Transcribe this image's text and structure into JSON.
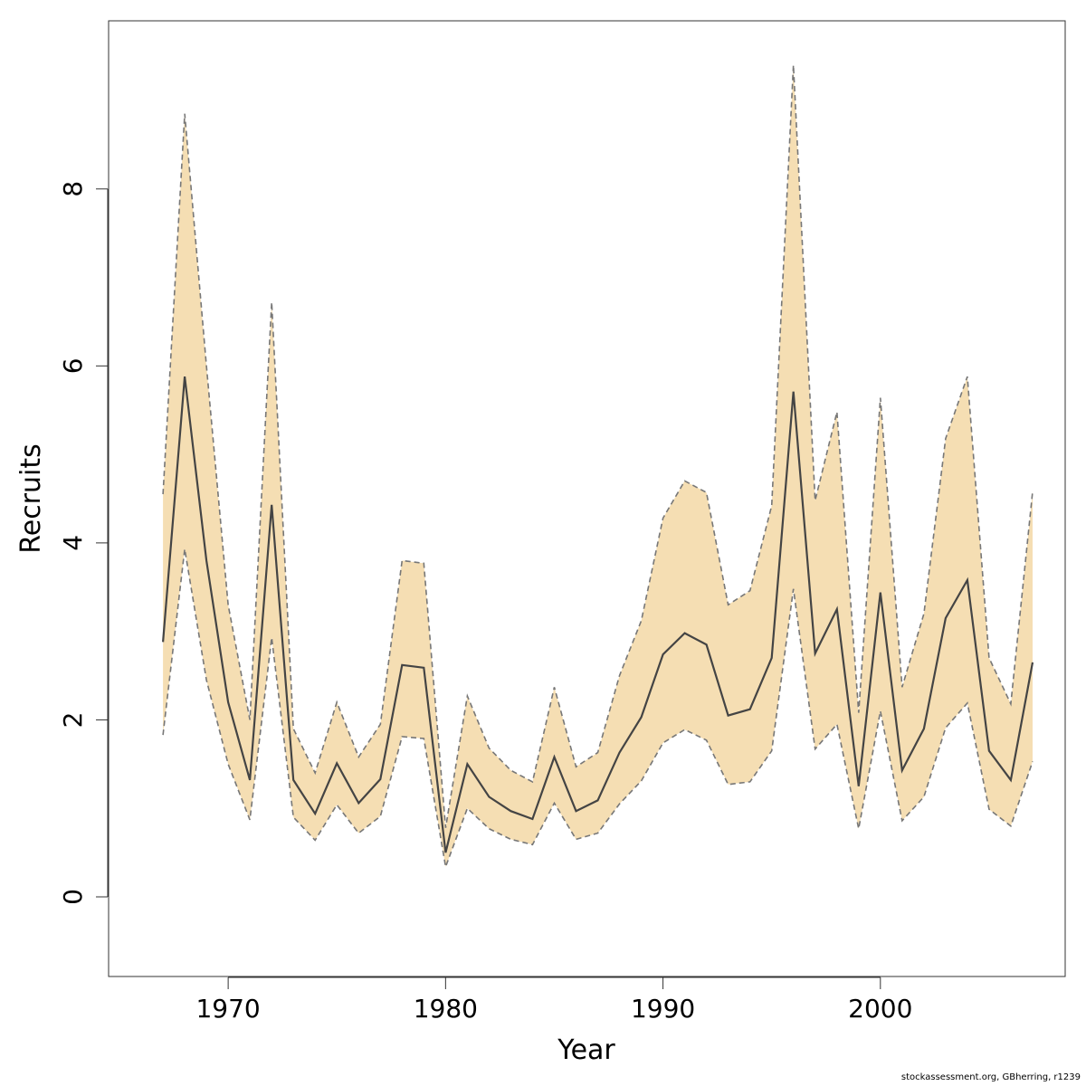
{
  "chart_data": {
    "type": "line",
    "xlabel": "Year",
    "ylabel": "Recruits",
    "xlim": [
      1964.5,
      2008.5
    ],
    "ylim": [
      -0.9,
      9.9
    ],
    "xticks": [
      1970,
      1980,
      1990,
      2000
    ],
    "yticks": [
      0,
      2,
      4,
      6,
      8
    ],
    "band_color": "#f5deb3",
    "line_color": "#444444",
    "bound_color": "#777777",
    "x": [
      1967,
      1968,
      1969,
      1970,
      1971,
      1972,
      1973,
      1974,
      1975,
      1976,
      1977,
      1978,
      1979,
      1980,
      1981,
      1982,
      1983,
      1984,
      1985,
      1986,
      1987,
      1988,
      1989,
      1990,
      1991,
      1992,
      1993,
      1994,
      1995,
      1996,
      1997,
      1998,
      1999,
      2000,
      2001,
      2002,
      2003,
      2004,
      2005,
      2006,
      2007
    ],
    "series": [
      {
        "role": "estimate",
        "values": [
          2.88,
          5.88,
          3.8,
          2.2,
          1.32,
          4.43,
          1.32,
          0.94,
          1.51,
          1.06,
          1.33,
          2.62,
          2.59,
          0.5,
          1.5,
          1.13,
          0.97,
          0.88,
          1.58,
          0.97,
          1.09,
          1.63,
          2.03,
          2.74,
          2.98,
          2.85,
          2.05,
          2.12,
          2.7,
          5.71,
          2.75,
          3.25,
          1.25,
          3.44,
          1.43,
          1.9,
          3.15,
          3.58,
          1.65,
          1.32,
          2.65
        ]
      },
      {
        "role": "upper",
        "values": [
          4.55,
          8.85,
          6.0,
          3.3,
          2.0,
          6.72,
          1.9,
          1.4,
          2.2,
          1.58,
          1.95,
          3.8,
          3.77,
          0.78,
          2.27,
          1.68,
          1.43,
          1.3,
          2.37,
          1.47,
          1.63,
          2.5,
          3.12,
          4.28,
          4.7,
          4.57,
          3.3,
          3.46,
          4.42,
          9.4,
          4.48,
          5.48,
          2.08,
          5.64,
          2.37,
          3.2,
          5.18,
          5.88,
          2.7,
          2.18,
          4.58
        ]
      },
      {
        "role": "lower",
        "values": [
          1.83,
          3.93,
          2.45,
          1.5,
          0.87,
          2.93,
          0.9,
          0.64,
          1.04,
          0.72,
          0.91,
          1.81,
          1.79,
          0.34,
          1.0,
          0.77,
          0.65,
          0.59,
          1.06,
          0.65,
          0.72,
          1.05,
          1.31,
          1.74,
          1.89,
          1.77,
          1.27,
          1.3,
          1.65,
          3.48,
          1.67,
          1.95,
          0.77,
          2.1,
          0.86,
          1.13,
          1.91,
          2.19,
          0.99,
          0.8,
          1.53
        ]
      }
    ]
  },
  "credit": "stockassessment.org, GBherring, r1239"
}
